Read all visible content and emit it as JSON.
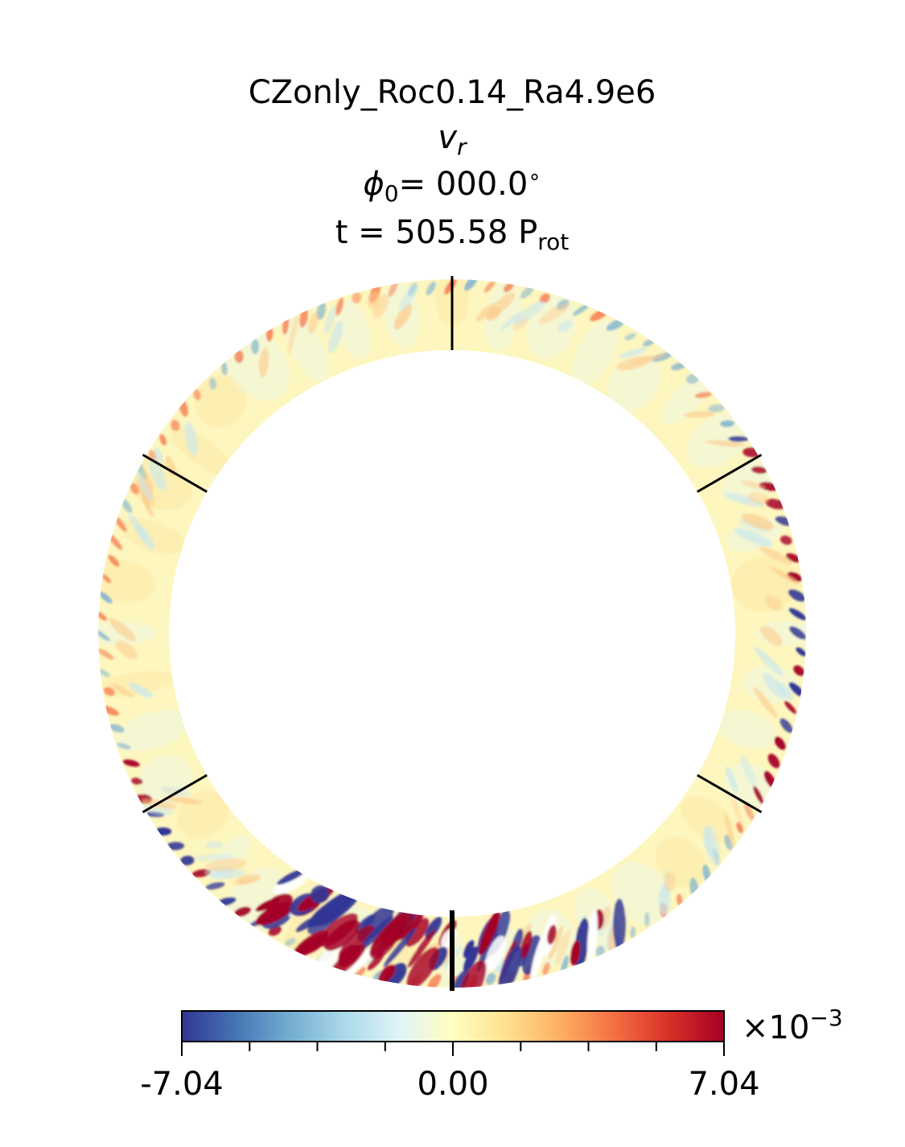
{
  "chart_data": {
    "type": "heatmap",
    "subtype": "meridional-slice-annulus",
    "title": "CZonly_Roc0.14_Ra4.9e6",
    "variable_label": "v",
    "variable_subscript": "r",
    "phi_label": "ϕ",
    "phi_subscript": "0",
    "phi_value": "= 000.0",
    "phi_unit": "∘",
    "time_prefix": "t = 505.58 P",
    "time_subscript": "rot",
    "colormap": "RdYlBu_r",
    "color_range": [
      -7.04,
      7.04
    ],
    "colorbar": {
      "orientation": "horizontal",
      "tick_labels": [
        "-7.04",
        "0.00",
        "7.04"
      ],
      "minor_ticks_between": 3,
      "exponent_prefix": "×10",
      "exponent_power": "−3"
    },
    "latitude_markers_deg": [
      0,
      30,
      60,
      -30,
      -60,
      -90
    ],
    "colors": {
      "min": "#313695",
      "low": "#74add1",
      "neutral": "#ffffbf",
      "high": "#f46d43",
      "max": "#a50026"
    }
  }
}
